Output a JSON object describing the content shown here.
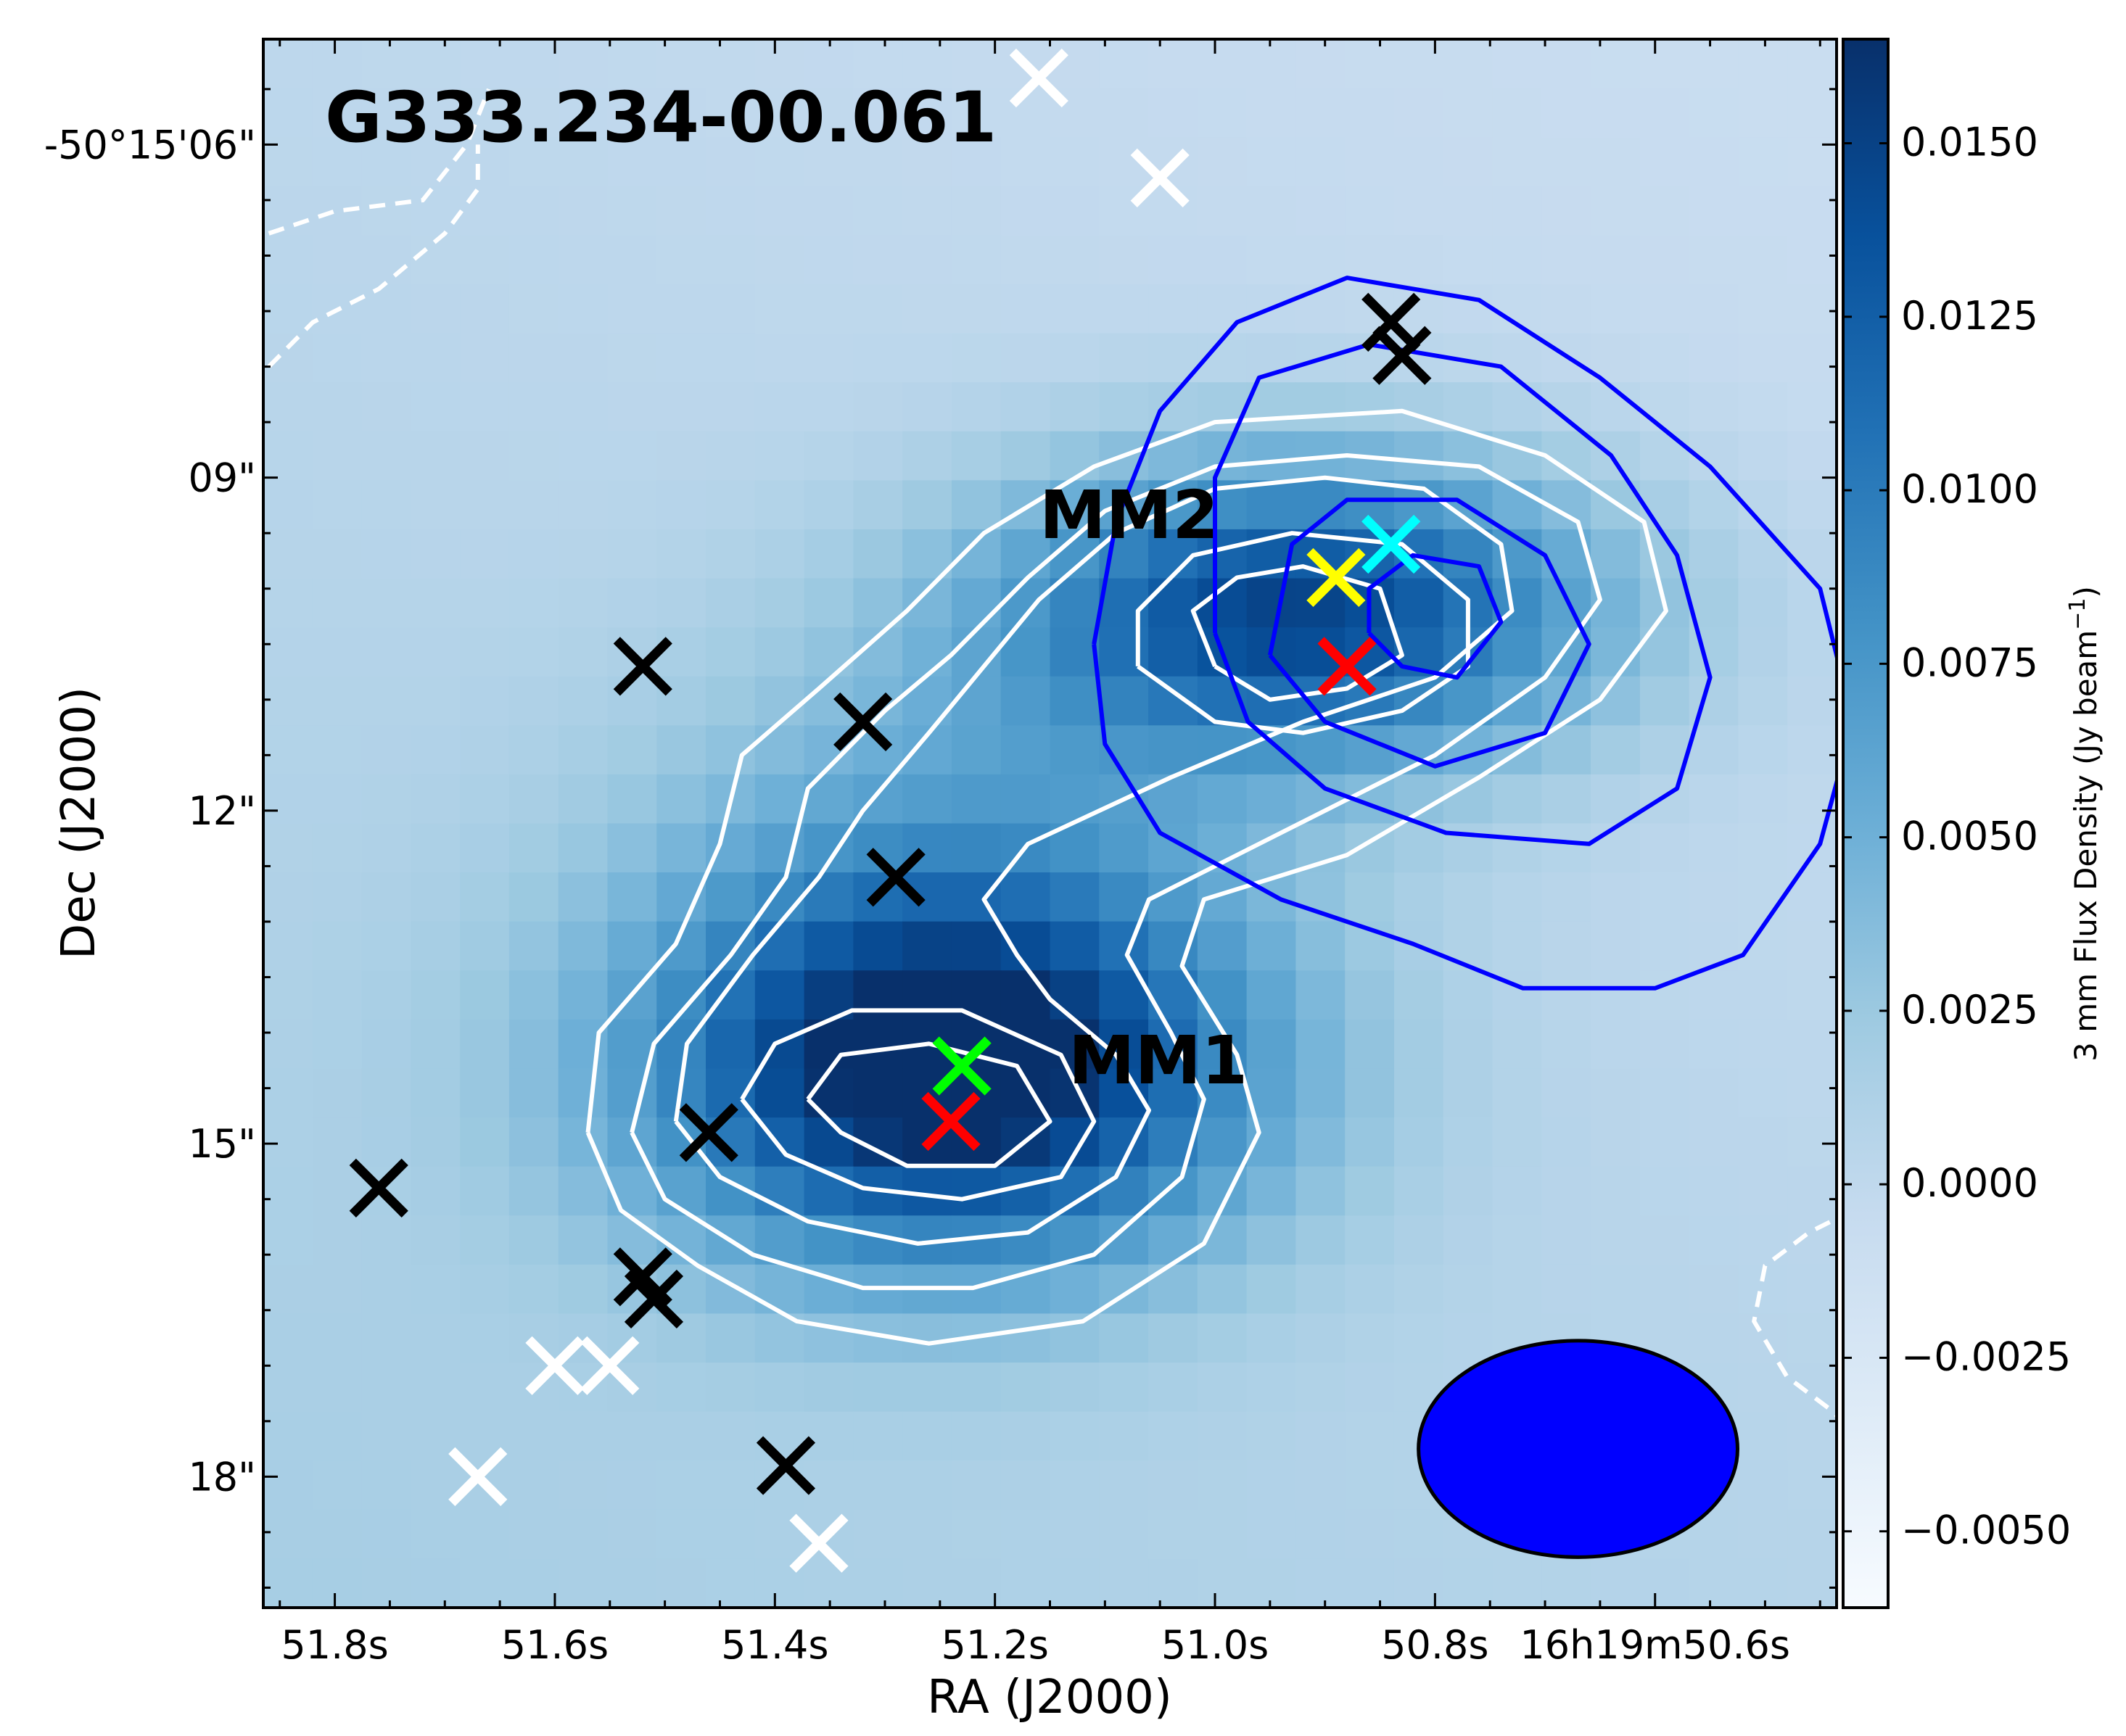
{
  "chart_data": {
    "type": "heatmap",
    "title": "G333.234-00.061",
    "xlabel": "RA (J2000)",
    "ylabel": "Dec (J2000)",
    "x_tick_labels": [
      "51.8s",
      "51.6s",
      "51.4s",
      "51.2s",
      "51.0s",
      "50.8s",
      "16h19m50.6s"
    ],
    "x_tick_values_s": [
      51.8,
      51.6,
      51.4,
      51.2,
      51.0,
      50.8,
      50.6
    ],
    "y_tick_labels": [
      "-50°15'06\"",
      "09\"",
      "12\"",
      "15\"",
      "18\""
    ],
    "y_tick_values_arcsec": [
      6,
      9,
      12,
      15,
      18
    ],
    "colorbar": {
      "label": "3 mm Flux Density (Jy beam",
      "label_exponent": "−1",
      "label_close": ")",
      "ticks": [
        0.015,
        0.0125,
        0.01,
        0.0075,
        0.005,
        0.0025,
        0.0,
        -0.0025,
        -0.005
      ],
      "tick_labels": [
        "0.0150",
        "0.0125",
        "0.0100",
        "0.0075",
        "0.0050",
        "0.0025",
        "0.0000",
        "−0.0025",
        "−0.0050"
      ],
      "range": [
        -0.0061,
        0.0165
      ],
      "colormap": "Blues"
    },
    "sources": [
      {
        "label": "MM1",
        "ra_s": 51.24,
        "dec_arcsec": 14.4,
        "peak": 0.0165,
        "sx": 0.19,
        "sy": 1.2
      },
      {
        "label": "MM2",
        "ra_s": 50.92,
        "dec_arcsec": 10.2,
        "peak": 0.0145,
        "sx": 0.19,
        "sy": 0.95
      },
      {
        "ra_s": 51.24,
        "dec_arcsec": 12.6,
        "peak": 0.0045,
        "sx": 0.2,
        "sy": 1.5
      }
    ],
    "markers": [
      {
        "color": "black",
        "ra_s": 51.52,
        "dec_arcsec": 10.7
      },
      {
        "color": "black",
        "ra_s": 51.32,
        "dec_arcsec": 11.2
      },
      {
        "color": "black",
        "ra_s": 51.29,
        "dec_arcsec": 12.6
      },
      {
        "color": "black",
        "ra_s": 51.46,
        "dec_arcsec": 14.9
      },
      {
        "color": "black",
        "ra_s": 51.76,
        "dec_arcsec": 15.4
      },
      {
        "color": "black",
        "ra_s": 51.52,
        "dec_arcsec": 16.2
      },
      {
        "color": "black",
        "ra_s": 51.51,
        "dec_arcsec": 16.4
      },
      {
        "color": "black",
        "ra_s": 51.39,
        "dec_arcsec": 17.9
      },
      {
        "color": "black",
        "ra_s": 50.84,
        "dec_arcsec": 7.6
      },
      {
        "color": "black",
        "ra_s": 50.83,
        "dec_arcsec": 7.9
      },
      {
        "color": "white",
        "ra_s": 51.16,
        "dec_arcsec": 5.4
      },
      {
        "color": "white",
        "ra_s": 51.05,
        "dec_arcsec": 6.3
      },
      {
        "color": "white",
        "ra_s": 51.6,
        "dec_arcsec": 17.0
      },
      {
        "color": "white",
        "ra_s": 51.55,
        "dec_arcsec": 17.0
      },
      {
        "color": "white",
        "ra_s": 51.67,
        "dec_arcsec": 18.0
      },
      {
        "color": "white",
        "ra_s": 51.36,
        "dec_arcsec": 18.6
      },
      {
        "color": "yellow",
        "ra_s": 50.89,
        "dec_arcsec": 9.9
      },
      {
        "color": "cyan",
        "ra_s": 50.84,
        "dec_arcsec": 9.6
      },
      {
        "color": "red",
        "ra_s": 50.88,
        "dec_arcsec": 10.7
      },
      {
        "color": "lime",
        "ra_s": 51.23,
        "dec_arcsec": 14.3
      },
      {
        "color": "red",
        "ra_s": 51.24,
        "dec_arcsec": 14.8
      }
    ],
    "white_contours": [
      [
        [
          51.57,
          14.9
        ],
        [
          51.54,
          15.6
        ],
        [
          51.47,
          16.1
        ],
        [
          51.38,
          16.6
        ],
        [
          51.26,
          16.8
        ],
        [
          51.12,
          16.6
        ],
        [
          51.01,
          15.9
        ],
        [
          50.96,
          14.9
        ],
        [
          50.98,
          14.2
        ],
        [
          51.03,
          13.4
        ],
        [
          51.01,
          12.8
        ],
        [
          50.88,
          12.4
        ],
        [
          50.76,
          11.7
        ],
        [
          50.65,
          11.0
        ],
        [
          50.59,
          10.2
        ],
        [
          50.61,
          9.4
        ],
        [
          50.7,
          8.8
        ],
        [
          50.83,
          8.4
        ],
        [
          51.0,
          8.5
        ],
        [
          51.11,
          8.9
        ],
        [
          51.21,
          9.5
        ],
        [
          51.28,
          10.2
        ],
        [
          51.36,
          10.9
        ],
        [
          51.43,
          11.5
        ],
        [
          51.45,
          12.3
        ],
        [
          51.49,
          13.2
        ],
        [
          51.56,
          14.0
        ],
        [
          51.57,
          14.9
        ]
      ],
      [
        [
          51.53,
          14.9
        ],
        [
          51.5,
          15.5
        ],
        [
          51.42,
          16.0
        ],
        [
          51.32,
          16.3
        ],
        [
          51.22,
          16.3
        ],
        [
          51.11,
          16.0
        ],
        [
          51.03,
          15.3
        ],
        [
          51.01,
          14.6
        ],
        [
          51.04,
          14.0
        ],
        [
          51.08,
          13.3
        ],
        [
          51.06,
          12.8
        ],
        [
          50.94,
          12.2
        ],
        [
          50.8,
          11.5
        ],
        [
          50.7,
          10.8
        ],
        [
          50.65,
          10.1
        ],
        [
          50.67,
          9.4
        ],
        [
          50.76,
          8.9
        ],
        [
          50.88,
          8.8
        ],
        [
          51.0,
          8.9
        ],
        [
          51.1,
          9.3
        ],
        [
          51.17,
          9.9
        ],
        [
          51.24,
          10.6
        ],
        [
          51.3,
          11.1
        ],
        [
          51.37,
          11.8
        ],
        [
          51.39,
          12.6
        ],
        [
          51.44,
          13.3
        ],
        [
          51.51,
          14.1
        ],
        [
          51.53,
          14.9
        ]
      ],
      [
        [
          51.49,
          14.8
        ],
        [
          51.45,
          15.3
        ],
        [
          51.37,
          15.7
        ],
        [
          51.27,
          15.9
        ],
        [
          51.17,
          15.8
        ],
        [
          51.09,
          15.3
        ],
        [
          51.06,
          14.7
        ],
        [
          51.09,
          14.2
        ],
        [
          51.15,
          13.7
        ],
        [
          51.18,
          13.3
        ],
        [
          51.21,
          12.8
        ],
        [
          51.17,
          12.3
        ],
        [
          51.04,
          11.7
        ],
        [
          50.92,
          11.2
        ],
        [
          50.8,
          10.8
        ],
        [
          50.73,
          10.2
        ],
        [
          50.74,
          9.6
        ],
        [
          50.81,
          9.1
        ],
        [
          50.9,
          9.0
        ],
        [
          51.0,
          9.1
        ],
        [
          51.09,
          9.5
        ],
        [
          51.16,
          10.1
        ],
        [
          51.21,
          10.7
        ],
        [
          51.26,
          11.3
        ],
        [
          51.32,
          12.0
        ],
        [
          51.36,
          12.6
        ],
        [
          51.42,
          13.3
        ],
        [
          51.48,
          14.1
        ],
        [
          51.49,
          14.8
        ]
      ],
      [
        [
          51.43,
          14.6
        ],
        [
          51.39,
          15.1
        ],
        [
          51.32,
          15.4
        ],
        [
          51.23,
          15.5
        ],
        [
          51.14,
          15.3
        ],
        [
          51.11,
          14.8
        ],
        [
          51.14,
          14.2
        ],
        [
          51.23,
          13.8
        ],
        [
          51.33,
          13.8
        ],
        [
          51.4,
          14.1
        ],
        [
          51.43,
          14.6
        ]
      ],
      [
        [
          51.37,
          14.6
        ],
        [
          51.34,
          14.9
        ],
        [
          51.28,
          15.2
        ],
        [
          51.2,
          15.2
        ],
        [
          51.15,
          14.8
        ],
        [
          51.18,
          14.3
        ],
        [
          51.26,
          14.1
        ],
        [
          51.34,
          14.2
        ],
        [
          51.37,
          14.6
        ]
      ],
      [
        [
          51.07,
          10.7
        ],
        [
          51.0,
          11.2
        ],
        [
          50.92,
          11.3
        ],
        [
          50.83,
          11.1
        ],
        [
          50.77,
          10.7
        ],
        [
          50.77,
          10.1
        ],
        [
          50.83,
          9.6
        ],
        [
          50.93,
          9.5
        ],
        [
          51.02,
          9.7
        ],
        [
          51.07,
          10.2
        ],
        [
          51.07,
          10.7
        ]
      ],
      [
        [
          51.0,
          10.7
        ],
        [
          50.95,
          11.0
        ],
        [
          50.88,
          10.9
        ],
        [
          50.83,
          10.6
        ],
        [
          50.85,
          10.0
        ],
        [
          50.92,
          9.8
        ],
        [
          50.98,
          9.9
        ],
        [
          51.02,
          10.2
        ],
        [
          51.0,
          10.7
        ]
      ]
    ],
    "blue_contours": [
      [
        [
          51.11,
          10.5
        ],
        [
          51.1,
          11.4
        ],
        [
          51.05,
          12.2
        ],
        [
          50.94,
          12.8
        ],
        [
          50.82,
          13.2
        ],
        [
          50.72,
          13.6
        ],
        [
          50.6,
          13.6
        ],
        [
          50.52,
          13.3
        ],
        [
          50.45,
          12.3
        ],
        [
          50.42,
          11.2
        ],
        [
          50.45,
          10.0
        ],
        [
          50.55,
          8.9
        ],
        [
          50.65,
          8.1
        ],
        [
          50.76,
          7.4
        ],
        [
          50.88,
          7.2
        ],
        [
          50.98,
          7.6
        ],
        [
          51.05,
          8.4
        ],
        [
          51.09,
          9.4
        ],
        [
          51.11,
          10.5
        ]
      ],
      [
        [
          51.0,
          10.4
        ],
        [
          50.97,
          11.2
        ],
        [
          50.9,
          11.8
        ],
        [
          50.79,
          12.2
        ],
        [
          50.66,
          12.3
        ],
        [
          50.58,
          11.8
        ],
        [
          50.55,
          10.8
        ],
        [
          50.58,
          9.7
        ],
        [
          50.64,
          8.8
        ],
        [
          50.74,
          8.0
        ],
        [
          50.86,
          7.8
        ],
        [
          50.96,
          8.1
        ],
        [
          51.0,
          9.0
        ],
        [
          51.0,
          10.4
        ]
      ],
      [
        [
          50.95,
          10.6
        ],
        [
          50.9,
          11.2
        ],
        [
          50.8,
          11.6
        ],
        [
          50.7,
          11.3
        ],
        [
          50.66,
          10.5
        ],
        [
          50.7,
          9.7
        ],
        [
          50.78,
          9.2
        ],
        [
          50.88,
          9.2
        ],
        [
          50.93,
          9.6
        ],
        [
          50.95,
          10.6
        ]
      ],
      [
        [
          50.86,
          10.4
        ],
        [
          50.83,
          10.7
        ],
        [
          50.78,
          10.8
        ],
        [
          50.74,
          10.3
        ],
        [
          50.76,
          9.8
        ],
        [
          50.82,
          9.7
        ],
        [
          50.86,
          10.0
        ],
        [
          50.86,
          10.4
        ]
      ]
    ],
    "dashed_contours": [
      [
        [
          51.86,
          6.8
        ],
        [
          51.8,
          6.6
        ],
        [
          51.72,
          6.5
        ],
        [
          51.68,
          6.0
        ],
        [
          51.66,
          5.5
        ]
      ],
      [
        [
          51.86,
          8.0
        ],
        [
          51.82,
          7.6
        ],
        [
          51.76,
          7.3
        ],
        [
          51.7,
          6.8
        ],
        [
          51.67,
          6.4
        ],
        [
          51.67,
          6.0
        ]
      ],
      [
        [
          50.42,
          15.6
        ],
        [
          50.46,
          15.8
        ],
        [
          50.5,
          16.1
        ],
        [
          50.51,
          16.6
        ],
        [
          50.48,
          17.1
        ],
        [
          50.44,
          17.4
        ],
        [
          50.42,
          17.6
        ]
      ]
    ],
    "beam": {
      "ra_s": 50.67,
      "dec_arcsec": 17.75,
      "width_s": 0.29,
      "height_arcsec": 1.95,
      "color": "#0000ff"
    }
  }
}
